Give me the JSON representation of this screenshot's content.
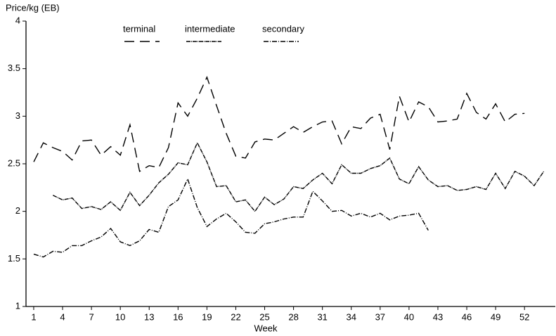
{
  "chart_data": {
    "type": "line",
    "y_label": "Price/kg (EB)",
    "x_label": "Week",
    "x": [
      1,
      2,
      3,
      4,
      5,
      6,
      7,
      8,
      9,
      10,
      11,
      12,
      13,
      14,
      15,
      16,
      17,
      18,
      19,
      20,
      21,
      22,
      23,
      24,
      25,
      26,
      27,
      28,
      29,
      30,
      31,
      32,
      33,
      34,
      35,
      36,
      37,
      38,
      39,
      40,
      41,
      42,
      43,
      44,
      45,
      46,
      47,
      48,
      49,
      50,
      51,
      52,
      53,
      54
    ],
    "series": [
      {
        "name": "terminal",
        "color": "#000000",
        "dash": "14,8",
        "values": [
          2.52,
          2.72,
          2.67,
          2.63,
          2.54,
          2.74,
          2.75,
          2.59,
          2.68,
          2.59,
          2.91,
          2.42,
          2.48,
          2.46,
          2.67,
          3.14,
          3.0,
          3.19,
          3.41,
          3.11,
          2.82,
          2.58,
          2.56,
          2.73,
          2.76,
          2.75,
          2.82,
          2.89,
          2.83,
          2.89,
          2.94,
          2.95,
          2.71,
          2.89,
          2.87,
          2.98,
          3.02,
          2.65,
          3.21,
          2.94,
          3.15,
          3.1,
          2.94,
          2.95,
          2.97,
          3.24,
          3.04,
          2.97,
          3.13,
          2.94,
          3.02,
          3.03,
          null,
          null
        ]
      },
      {
        "name": "intermediate",
        "color": "#000000",
        "dash": "6,1,1,1",
        "values": [
          null,
          null,
          2.17,
          2.12,
          2.14,
          2.03,
          2.05,
          2.02,
          2.1,
          2.01,
          2.2,
          2.06,
          2.17,
          2.3,
          2.39,
          2.51,
          2.49,
          2.72,
          2.52,
          2.26,
          2.27,
          2.1,
          2.12,
          2.0,
          2.15,
          2.07,
          2.13,
          2.26,
          2.24,
          2.33,
          2.4,
          2.29,
          2.49,
          2.4,
          2.4,
          2.45,
          2.48,
          2.56,
          2.34,
          2.29,
          2.47,
          2.33,
          2.26,
          2.27,
          2.22,
          2.23,
          2.26,
          2.23,
          2.4,
          2.24,
          2.42,
          2.37,
          2.27,
          2.42
        ]
      },
      {
        "name": "secondary",
        "color": "#000000",
        "dash": "7,2,1,2",
        "values": [
          1.55,
          1.52,
          1.58,
          1.57,
          1.64,
          1.64,
          1.69,
          1.73,
          1.82,
          1.68,
          1.64,
          1.69,
          1.81,
          1.78,
          2.05,
          2.12,
          2.34,
          2.04,
          1.84,
          1.92,
          1.98,
          1.89,
          1.78,
          1.77,
          1.87,
          1.89,
          1.92,
          1.94,
          1.94,
          2.21,
          2.11,
          2.0,
          2.01,
          1.95,
          1.98,
          1.94,
          1.98,
          1.91,
          1.95,
          1.96,
          1.98,
          1.8,
          null,
          null,
          null,
          null,
          null,
          null,
          null,
          null,
          null,
          null,
          null,
          null
        ]
      }
    ],
    "xlim": [
      0.2,
      55.2
    ],
    "xticks": [
      1,
      4,
      7,
      10,
      13,
      16,
      19,
      22,
      25,
      28,
      31,
      34,
      37,
      40,
      43,
      46,
      49,
      52
    ],
    "ylim": [
      1,
      4
    ],
    "yticks": [
      1,
      1.5,
      2,
      2.5,
      3,
      3.5,
      4
    ],
    "grid": false
  }
}
